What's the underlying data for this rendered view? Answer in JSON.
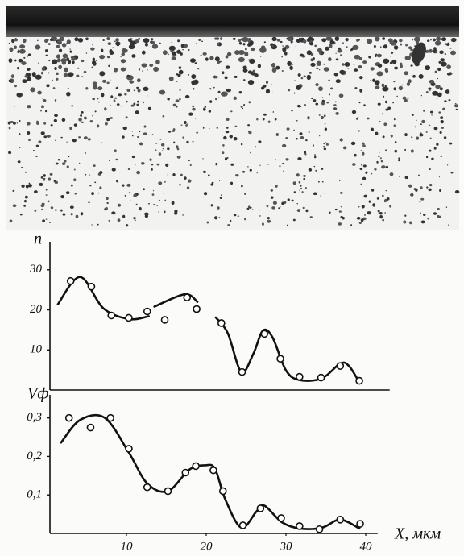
{
  "chart_data": [
    {
      "type": "scatter-curve",
      "ylabel": "n",
      "x": [
        3.0,
        5.6,
        8.1,
        10.3,
        12.6,
        14.8,
        17.6,
        18.8,
        21.9,
        24.5,
        27.3,
        29.3,
        31.7,
        34.4,
        36.8,
        39.2
      ],
      "values": [
        27.2,
        25.8,
        18.6,
        18,
        19.6,
        17.5,
        23.1,
        20.2,
        16.7,
        4.5,
        14,
        7.8,
        3.3,
        3.1,
        6,
        2.3
      ],
      "curve": {
        "x": [
          1.4,
          4.2,
          7.1,
          10.3,
          12.8,
          null,
          13.5,
          17.3,
          18.9,
          null,
          21.2,
          22.7,
          24.4,
          25.9,
          27.1,
          28.3,
          30,
          31.7,
          34.5,
          36.8,
          37.9,
          39.2
        ],
        "values": [
          21.4,
          28.2,
          20.4,
          17.7,
          18.4,
          null,
          20.8,
          23.9,
          22,
          null,
          18.1,
          14.2,
          4.5,
          9,
          14.8,
          13.2,
          4.9,
          2.5,
          2.9,
          6.6,
          6,
          1.9
        ]
      },
      "xlim": [
        0,
        43
      ],
      "ylim": [
        0,
        37
      ],
      "yticks": [
        10,
        20,
        30
      ]
    },
    {
      "type": "scatter-curve",
      "ylabel": "Vф",
      "xlabel": "X, мкм",
      "x": [
        2.8,
        5.5,
        8.0,
        10.3,
        12.6,
        15.2,
        17.4,
        18.7,
        20.9,
        22.1,
        24.6,
        26.8,
        29.4,
        31.7,
        34.2,
        36.8,
        39.3
      ],
      "values": [
        0.3,
        0.275,
        0.3,
        0.22,
        0.12,
        0.11,
        0.158,
        0.175,
        0.164,
        0.11,
        0.021,
        0.065,
        0.04,
        0.019,
        0.011,
        0.036,
        0.025
      ],
      "curve": {
        "x": [
          1.8,
          4.2,
          7.3,
          10.3,
          12.6,
          15.2,
          17.9,
          19.9,
          21.1,
          22.4,
          24.4,
          26.3,
          27.3,
          29.5,
          31.7,
          34.5,
          36.8,
          39.2
        ],
        "values": [
          0.236,
          0.295,
          0.3,
          0.21,
          0.13,
          0.11,
          0.166,
          0.177,
          0.168,
          0.088,
          0.015,
          0.057,
          0.072,
          0.029,
          0.013,
          0.015,
          0.036,
          0.013
        ]
      },
      "xlim": [
        0,
        41.5
      ],
      "ylim": [
        0,
        0.36
      ],
      "xticks": [
        10,
        20,
        30,
        40
      ],
      "yticks": [
        {
          "value": 0.1,
          "label": "0,1"
        },
        {
          "value": 0.2,
          "label": "0,2"
        },
        {
          "value": 0.3,
          "label": "0,3"
        }
      ]
    }
  ]
}
